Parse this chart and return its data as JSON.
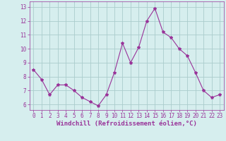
{
  "x": [
    0,
    1,
    2,
    3,
    4,
    5,
    6,
    7,
    8,
    9,
    10,
    11,
    12,
    13,
    14,
    15,
    16,
    17,
    18,
    19,
    20,
    21,
    22,
    23
  ],
  "y": [
    8.5,
    7.8,
    6.7,
    7.4,
    7.4,
    7.0,
    6.5,
    6.2,
    5.9,
    6.7,
    8.3,
    10.4,
    9.0,
    10.1,
    12.0,
    12.9,
    11.2,
    10.8,
    10.0,
    9.5,
    8.3,
    7.0,
    6.5,
    6.7
  ],
  "line_color": "#993399",
  "marker": "*",
  "marker_size": 3,
  "bg_color": "#d6eeee",
  "grid_color": "#aacccc",
  "xlabel": "Windchill (Refroidissement éolien,°C)",
  "xlabel_color": "#993399",
  "tick_color": "#993399",
  "yticks": [
    6,
    7,
    8,
    9,
    10,
    11,
    12,
    13
  ],
  "xticks": [
    0,
    1,
    2,
    3,
    4,
    5,
    6,
    7,
    8,
    9,
    10,
    11,
    12,
    13,
    14,
    15,
    16,
    17,
    18,
    19,
    20,
    21,
    22,
    23
  ],
  "ylim": [
    5.6,
    13.4
  ],
  "xlim": [
    -0.5,
    23.5
  ],
  "tick_fontsize": 5.5,
  "xlabel_fontsize": 6.5
}
